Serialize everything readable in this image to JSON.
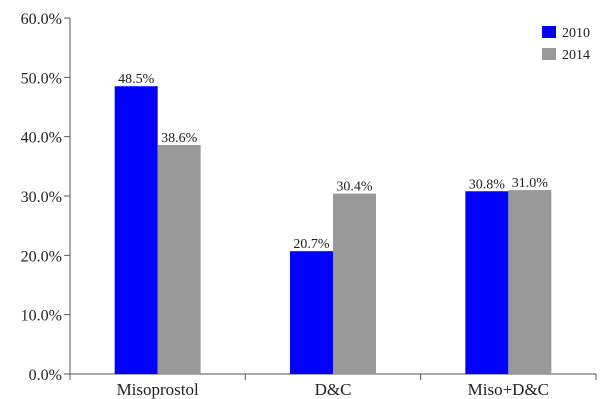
{
  "chart_data": {
    "type": "bar",
    "categories": [
      "Misoprostol",
      "D&C",
      "Miso+D&C"
    ],
    "series": [
      {
        "name": "2010",
        "values": [
          48.5,
          20.7,
          30.8
        ],
        "labels": [
          "48.5%",
          "20.7%",
          "30.8%"
        ],
        "color": "#0000ff"
      },
      {
        "name": "2014",
        "values": [
          38.6,
          30.4,
          31.0
        ],
        "labels": [
          "38.6%",
          "30.4%",
          "31.0%"
        ],
        "color": "#999999"
      }
    ],
    "title": "",
    "xlabel": "",
    "ylabel": "",
    "ylim": [
      0,
      60
    ],
    "yticks": [
      0,
      10,
      20,
      30,
      40,
      50,
      60
    ],
    "ytick_labels": [
      "0.0%",
      "10.0%",
      "20.0%",
      "30.0%",
      "40.0%",
      "50.0%",
      "60.0%"
    ],
    "grid": false,
    "legend": "top-right"
  }
}
